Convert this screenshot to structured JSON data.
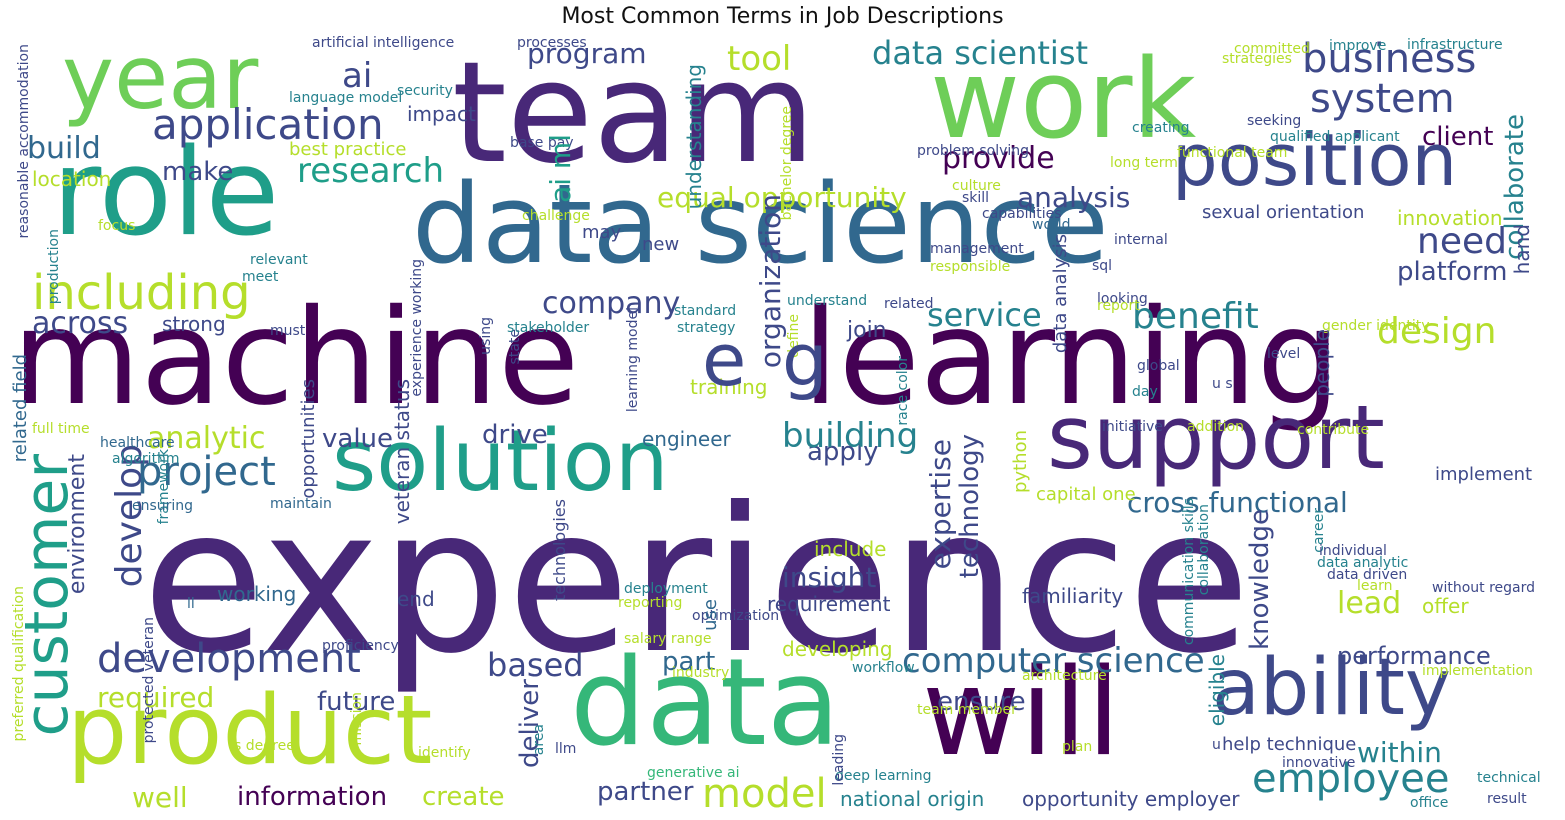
{
  "title": "Most Common Terms in Job Descriptions",
  "colors": {
    "dark_purple": "#440154",
    "purple": "#482878",
    "indigo": "#3e4989",
    "blue": "#31688e",
    "teal": "#26828e",
    "green_teal": "#1f9e89",
    "green": "#35b779",
    "light_green": "#6ece58",
    "lime": "#b5de2b",
    "yellow": "#fde725"
  },
  "words": [
    "experience",
    "machine",
    "learning",
    "team",
    "data science",
    "work",
    "data",
    "will",
    "role",
    "year",
    "solution",
    "product",
    "support",
    "position",
    "ability",
    "customer",
    "ai",
    "application",
    "business",
    "system",
    "data scientist",
    "tool",
    "program",
    "including",
    "build",
    "development",
    "develop",
    "project",
    "company",
    "provide",
    "research",
    "design",
    "need",
    "platform",
    "equal opportunity",
    "analysis",
    "service",
    "benefit",
    "client",
    "collaborate",
    "computer science",
    "employee",
    "model",
    "apply",
    "analytic",
    "building",
    "value",
    "drive",
    "environment",
    "technology",
    "expertise",
    "insight",
    "cross functional",
    "knowledge",
    "lead",
    "within",
    "performance",
    "across",
    "make",
    "location",
    "strong",
    "well",
    "information",
    "create",
    "partner",
    "based",
    "required",
    "future",
    "part",
    "deliver",
    "ensure",
    "engineer",
    "working",
    "end",
    "requirement",
    "familiarity",
    "opportunity employer",
    "national origin",
    "deep learning",
    "artificial intelligence",
    "processes",
    "impact",
    "security",
    "language model",
    "best practice",
    "understanding",
    "organization",
    "veteran status",
    "opportunities",
    "related field",
    "full time",
    "healthcare",
    "algorithm",
    "framework",
    "ensuring",
    "maintain",
    "technologies",
    "preferred qualification",
    "protected veteran",
    "proficiency",
    "mission",
    "identify",
    "generative ai",
    "llm",
    "area",
    "leading",
    "industry",
    "salary range",
    "optimization",
    "reporting",
    "deployment",
    "use",
    "developing",
    "training",
    "include",
    "join",
    "data analysis",
    "python",
    "capital one",
    "race color",
    "state",
    "learning model",
    "experience working",
    "communication skills",
    "collaboration",
    "career",
    "individual",
    "data analytic",
    "data driven",
    "learn",
    "without regard",
    "offer",
    "eligible",
    "help technique",
    "innovative",
    "office",
    "technical",
    "result",
    "implement",
    "hand",
    "innovation",
    "sexual orientation",
    "internal",
    "world",
    "capabilities",
    "skill",
    "culture",
    "problem solving",
    "bachelor degree",
    "base pay",
    "creating",
    "qualified applicant",
    "seeking",
    "committed",
    "strategies",
    "improve",
    "infrastructure",
    "long term",
    "functional team",
    "management",
    "responsible",
    "sql",
    "looking",
    "understand",
    "relevant",
    "meet",
    "must",
    "new",
    "may",
    "challenge",
    "focus",
    "production",
    "reasonable accommodation",
    "stakeholder",
    "using",
    "strategy",
    "related",
    "report",
    "standard",
    "define",
    "global",
    "day",
    "level",
    "gender identity",
    "people",
    "initiative",
    "contribute",
    "addition",
    "u s",
    "u",
    "plan",
    "team member",
    "s degree",
    "architecture",
    "implementation",
    "workflow",
    "ll",
    "e",
    "g",
    "ai ml"
  ]
}
